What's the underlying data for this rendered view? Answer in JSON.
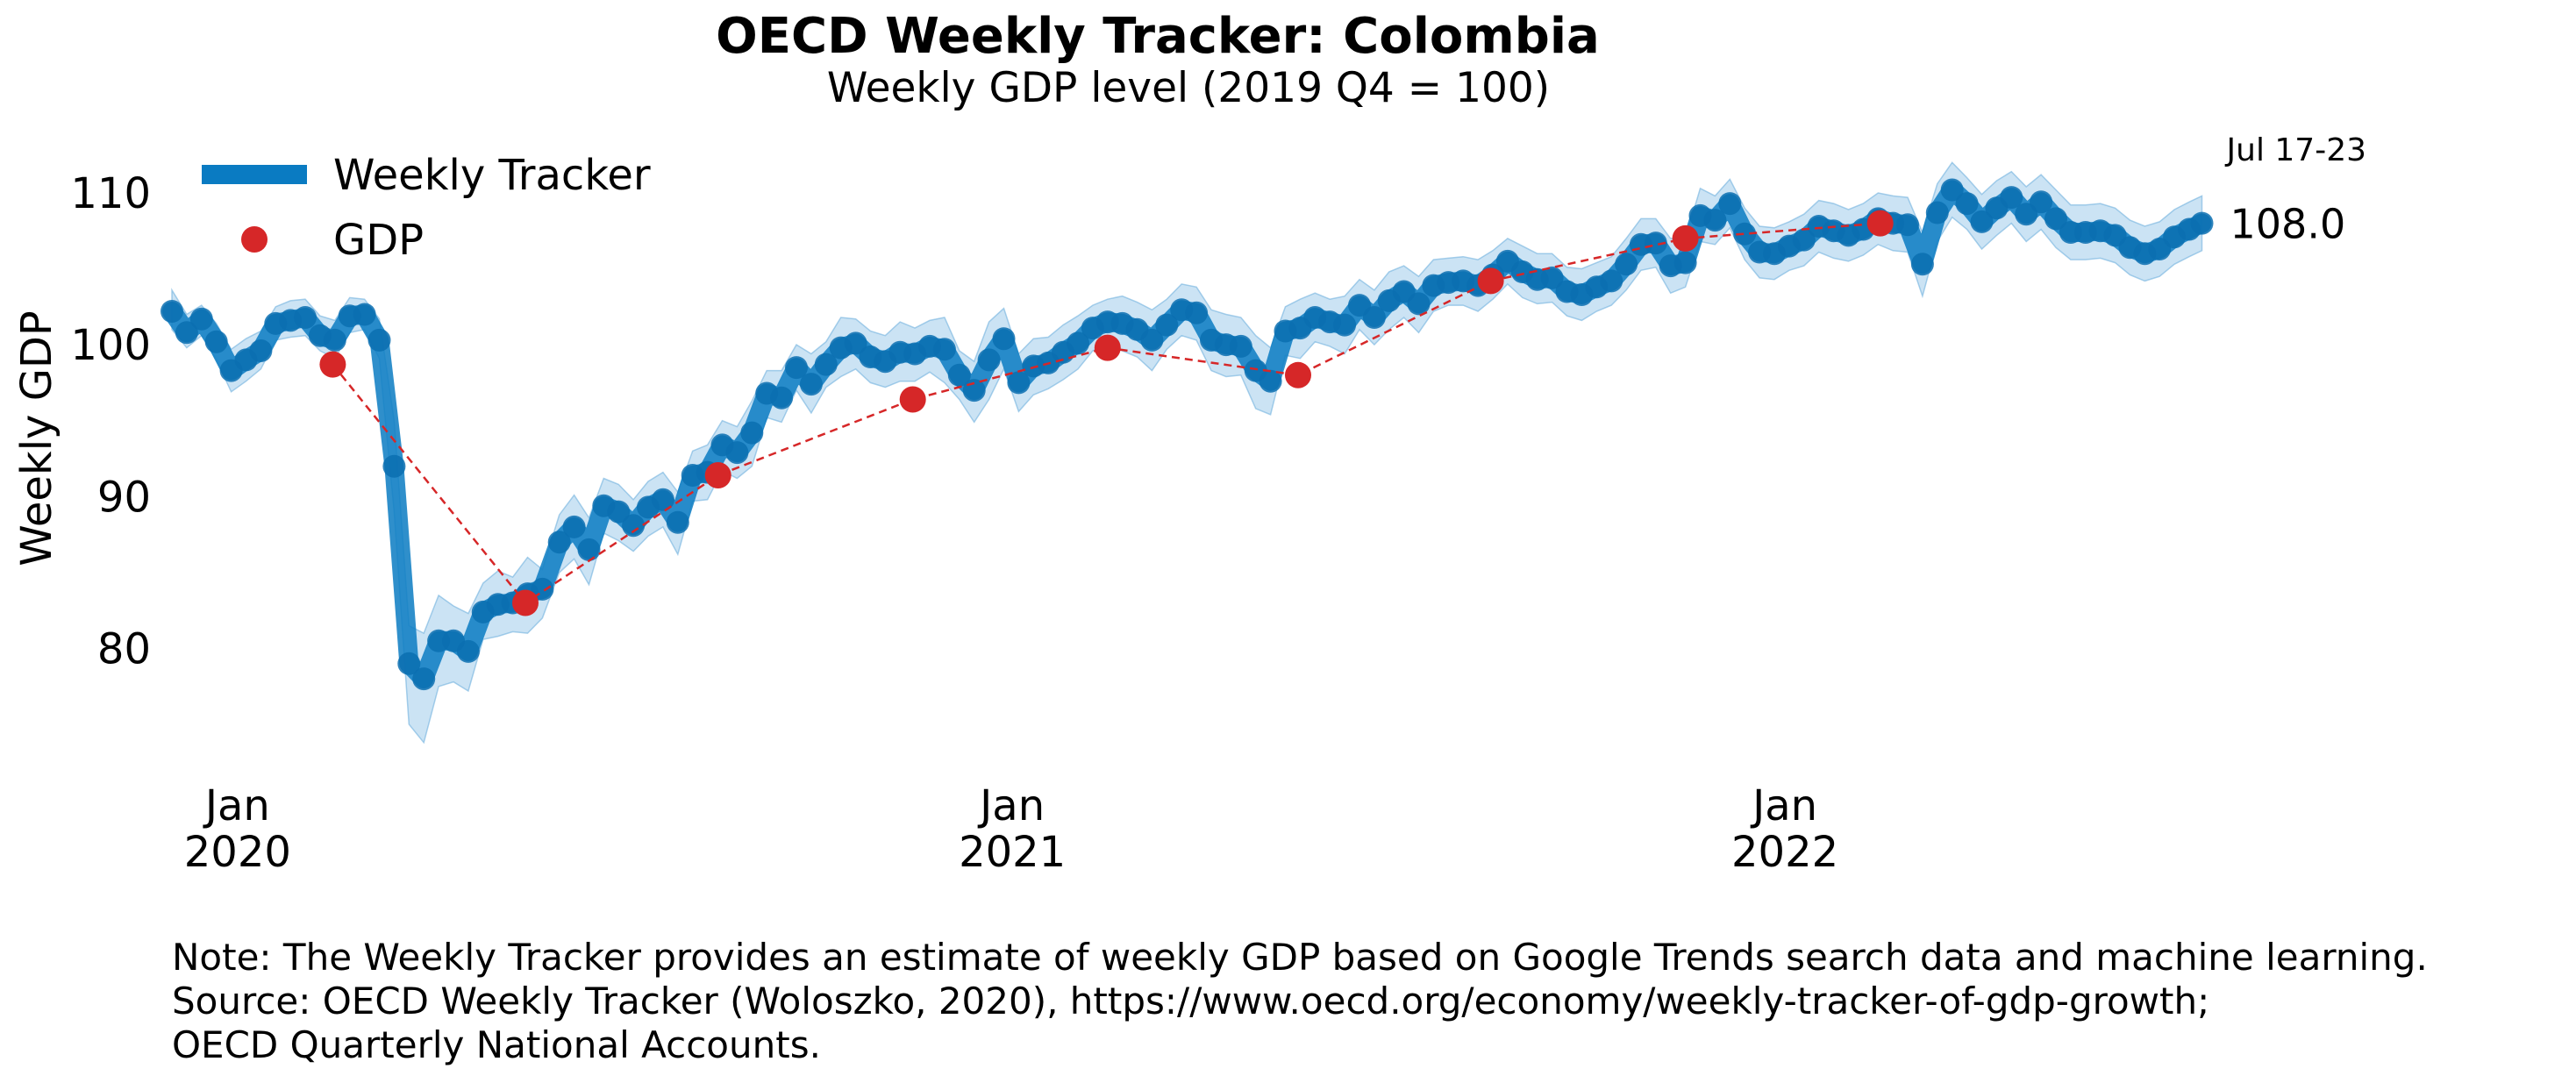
{
  "chart_data": {
    "type": "line",
    "title": "OECD Weekly Tracker: Colombia",
    "subtitle": "Weekly GDP level (2019 Q4 = 100)",
    "ylabel": "Weekly GDP",
    "xlabel": "",
    "ylim": [
      72,
      113
    ],
    "xlim": [
      "2019-12-01",
      "2022-07-23"
    ],
    "grid": false,
    "legend_position": "top-left",
    "y_ticks": [
      80,
      90,
      100,
      110
    ],
    "x_ticks": [
      {
        "date": "2020-01-01",
        "label_line1": "Jan",
        "label_line2": "2020"
      },
      {
        "date": "2021-01-01",
        "label_line1": "Jan",
        "label_line2": "2021"
      },
      {
        "date": "2022-01-01",
        "label_line1": "Jan",
        "label_line2": "2022"
      }
    ],
    "series": [
      {
        "name": "Weekly Tracker",
        "kind": "line_with_band",
        "color": "#0a7bc2",
        "band_color": "#a9d0ec",
        "points": [
          [
            "2019-12-01",
            102.2,
            103.6,
            101.0
          ],
          [
            "2019-12-08",
            100.8,
            102.0,
            99.8
          ],
          [
            "2019-12-15",
            101.7,
            102.6,
            100.6
          ],
          [
            "2019-12-22",
            100.2,
            101.4,
            99.0
          ],
          [
            "2019-12-29",
            98.3,
            99.7,
            96.9
          ],
          [
            "2020-01-05",
            99.0,
            100.4,
            97.6
          ],
          [
            "2020-01-12",
            99.6,
            100.9,
            98.4
          ],
          [
            "2020-01-19",
            101.4,
            102.5,
            100.3
          ],
          [
            "2020-01-26",
            101.6,
            102.9,
            100.5
          ],
          [
            "2020-02-02",
            101.8,
            103.0,
            100.6
          ],
          [
            "2020-02-09",
            100.6,
            101.9,
            99.6
          ],
          [
            "2020-02-16",
            100.3,
            101.6,
            99.1
          ],
          [
            "2020-02-23",
            101.9,
            103.1,
            100.8
          ],
          [
            "2020-03-01",
            102.0,
            103.0,
            101.0
          ],
          [
            "2020-03-08",
            100.3,
            101.7,
            99.1
          ],
          [
            "2020-03-15",
            92.0,
            95.0,
            89.0
          ],
          [
            "2020-03-22",
            79.0,
            81.5,
            75.0
          ],
          [
            "2020-03-29",
            78.0,
            81.0,
            73.8
          ],
          [
            "2020-04-05",
            80.5,
            83.5,
            77.5
          ],
          [
            "2020-04-12",
            80.5,
            82.8,
            77.8
          ],
          [
            "2020-04-19",
            79.8,
            82.3,
            77.2
          ],
          [
            "2020-04-26",
            82.4,
            84.3,
            80.6
          ],
          [
            "2020-05-03",
            82.9,
            85.1,
            80.8
          ],
          [
            "2020-05-10",
            83.0,
            84.7,
            81.1
          ],
          [
            "2020-05-17",
            83.6,
            86.0,
            81.0
          ],
          [
            "2020-05-24",
            83.9,
            85.2,
            82.0
          ],
          [
            "2020-06-01",
            87.0,
            88.8,
            85.0
          ],
          [
            "2020-06-08",
            88.0,
            90.1,
            85.9
          ],
          [
            "2020-06-15",
            86.5,
            88.6,
            84.2
          ],
          [
            "2020-06-22",
            89.4,
            91.2,
            87.6
          ],
          [
            "2020-06-29",
            89.0,
            90.8,
            87.1
          ],
          [
            "2020-07-06",
            88.1,
            89.8,
            86.4
          ],
          [
            "2020-07-13",
            89.3,
            91.0,
            87.4
          ],
          [
            "2020-07-20",
            89.8,
            91.6,
            88.0
          ],
          [
            "2020-07-27",
            88.3,
            90.3,
            86.2
          ],
          [
            "2020-08-03",
            91.4,
            93.0,
            89.7
          ],
          [
            "2020-08-10",
            91.6,
            93.4,
            89.8
          ],
          [
            "2020-08-17",
            93.4,
            95.0,
            91.7
          ],
          [
            "2020-08-24",
            92.9,
            94.6,
            91.2
          ],
          [
            "2020-08-31",
            94.2,
            96.3,
            92.0
          ],
          [
            "2020-09-07",
            96.8,
            98.3,
            95.2
          ],
          [
            "2020-09-14",
            96.5,
            98.3,
            94.9
          ],
          [
            "2020-09-21",
            98.5,
            100.0,
            97.0
          ],
          [
            "2020-09-28",
            97.4,
            99.4,
            95.5
          ],
          [
            "2020-10-05",
            98.7,
            100.2,
            97.2
          ],
          [
            "2020-10-12",
            99.8,
            101.8,
            97.9
          ],
          [
            "2020-10-19",
            100.1,
            101.7,
            98.4
          ],
          [
            "2020-10-26",
            99.2,
            100.9,
            97.5
          ],
          [
            "2020-11-02",
            98.9,
            100.6,
            97.2
          ],
          [
            "2020-11-09",
            99.5,
            101.5,
            97.6
          ],
          [
            "2020-11-16",
            99.4,
            101.1,
            97.6
          ],
          [
            "2020-11-23",
            99.9,
            101.6,
            98.2
          ],
          [
            "2020-11-30",
            99.7,
            101.8,
            97.5
          ],
          [
            "2020-12-07",
            98.0,
            99.6,
            96.4
          ],
          [
            "2020-12-14",
            97.0,
            98.9,
            94.9
          ],
          [
            "2020-12-21",
            99.0,
            101.5,
            96.4
          ],
          [
            "2020-12-28",
            100.4,
            102.4,
            98.4
          ],
          [
            "2021-01-04",
            97.5,
            99.4,
            95.6
          ],
          [
            "2021-01-11",
            98.6,
            100.4,
            96.7
          ],
          [
            "2021-01-18",
            98.8,
            100.5,
            97.1
          ],
          [
            "2021-01-25",
            99.5,
            101.3,
            97.7
          ],
          [
            "2021-02-01",
            100.1,
            101.9,
            98.4
          ],
          [
            "2021-02-08",
            101.1,
            102.6,
            99.6
          ],
          [
            "2021-02-15",
            101.5,
            103.0,
            100.0
          ],
          [
            "2021-02-22",
            101.4,
            103.2,
            99.6
          ],
          [
            "2021-03-01",
            101.0,
            102.8,
            99.2
          ],
          [
            "2021-03-08",
            100.3,
            102.3,
            98.3
          ],
          [
            "2021-03-15",
            101.3,
            103.0,
            99.7
          ],
          [
            "2021-03-22",
            102.3,
            104.0,
            100.6
          ],
          [
            "2021-03-29",
            102.1,
            103.8,
            100.3
          ],
          [
            "2021-04-05",
            100.3,
            102.3,
            98.3
          ],
          [
            "2021-04-12",
            100.0,
            102.0,
            97.9
          ],
          [
            "2021-04-19",
            99.9,
            101.8,
            98.0
          ],
          [
            "2021-04-26",
            98.3,
            100.6,
            95.8
          ],
          [
            "2021-05-03",
            97.6,
            99.8,
            95.4
          ],
          [
            "2021-05-10",
            100.9,
            102.5,
            99.3
          ],
          [
            "2021-05-17",
            101.1,
            103.0,
            99.1
          ],
          [
            "2021-05-24",
            101.8,
            103.4,
            100.2
          ],
          [
            "2021-05-31",
            101.5,
            103.0,
            99.9
          ],
          [
            "2021-06-07",
            101.3,
            103.2,
            99.4
          ],
          [
            "2021-06-14",
            102.6,
            104.3,
            101.0
          ],
          [
            "2021-06-21",
            101.8,
            103.6,
            100.0
          ],
          [
            "2021-06-28",
            102.9,
            104.8,
            101.0
          ],
          [
            "2021-07-05",
            103.5,
            105.2,
            101.8
          ],
          [
            "2021-07-12",
            102.7,
            104.5,
            100.8
          ],
          [
            "2021-07-19",
            103.9,
            105.6,
            102.2
          ],
          [
            "2021-07-26",
            104.1,
            105.7,
            102.6
          ],
          [
            "2021-08-02",
            104.2,
            105.8,
            102.6
          ],
          [
            "2021-08-09",
            103.9,
            105.6,
            102.2
          ],
          [
            "2021-08-16",
            104.6,
            106.2,
            103.0
          ],
          [
            "2021-08-23",
            105.5,
            107.0,
            104.0
          ],
          [
            "2021-08-30",
            104.8,
            106.5,
            103.1
          ],
          [
            "2021-09-06",
            104.3,
            106.0,
            102.7
          ],
          [
            "2021-09-13",
            104.4,
            106.0,
            102.8
          ],
          [
            "2021-09-20",
            103.5,
            105.1,
            101.9
          ],
          [
            "2021-09-27",
            103.3,
            105.0,
            101.6
          ],
          [
            "2021-10-04",
            103.8,
            105.4,
            102.2
          ],
          [
            "2021-10-11",
            104.2,
            105.8,
            102.6
          ],
          [
            "2021-10-18",
            105.3,
            107.0,
            103.6
          ],
          [
            "2021-10-25",
            106.6,
            108.3,
            104.9
          ],
          [
            "2021-11-01",
            106.7,
            108.3,
            105.1
          ],
          [
            "2021-11-08",
            105.2,
            107.0,
            103.4
          ],
          [
            "2021-11-15",
            105.4,
            107.0,
            103.8
          ],
          [
            "2021-11-22",
            108.5,
            110.3,
            106.8
          ],
          [
            "2021-11-29",
            108.2,
            109.8,
            106.6
          ],
          [
            "2021-12-06",
            109.3,
            110.9,
            107.7
          ],
          [
            "2021-12-13",
            107.3,
            109.0,
            105.6
          ],
          [
            "2021-12-20",
            106.1,
            107.8,
            104.4
          ],
          [
            "2021-12-27",
            106.0,
            107.7,
            104.3
          ],
          [
            "2022-01-03",
            106.5,
            108.1,
            104.9
          ],
          [
            "2022-01-10",
            106.9,
            108.6,
            105.2
          ],
          [
            "2022-01-17",
            107.8,
            109.5,
            106.1
          ],
          [
            "2022-01-24",
            107.5,
            109.3,
            105.7
          ],
          [
            "2022-01-31",
            107.2,
            108.9,
            105.5
          ],
          [
            "2022-02-07",
            107.6,
            109.3,
            105.9
          ],
          [
            "2022-02-14",
            108.3,
            110.0,
            106.6
          ],
          [
            "2022-02-21",
            108.0,
            109.8,
            106.2
          ],
          [
            "2022-02-28",
            107.9,
            109.7,
            106.1
          ],
          [
            "2022-03-07",
            105.3,
            107.4,
            103.2
          ],
          [
            "2022-03-14",
            108.7,
            110.6,
            106.8
          ],
          [
            "2022-03-21",
            110.2,
            112.0,
            108.4
          ],
          [
            "2022-03-28",
            109.3,
            111.0,
            107.6
          ],
          [
            "2022-04-04",
            108.1,
            109.9,
            106.3
          ],
          [
            "2022-04-11",
            109.0,
            110.8,
            107.2
          ],
          [
            "2022-04-18",
            109.7,
            111.4,
            108.0
          ],
          [
            "2022-04-25",
            108.6,
            110.4,
            106.8
          ],
          [
            "2022-05-02",
            109.4,
            111.2,
            107.6
          ],
          [
            "2022-05-09",
            108.3,
            110.2,
            106.4
          ],
          [
            "2022-05-16",
            107.4,
            109.2,
            105.6
          ],
          [
            "2022-05-23",
            107.4,
            109.2,
            105.6
          ],
          [
            "2022-05-30",
            107.5,
            109.3,
            105.7
          ],
          [
            "2022-06-06",
            107.2,
            109.0,
            105.4
          ],
          [
            "2022-06-13",
            106.4,
            108.2,
            104.6
          ],
          [
            "2022-06-20",
            106.0,
            107.8,
            104.2
          ],
          [
            "2022-06-27",
            106.3,
            108.1,
            104.5
          ],
          [
            "2022-07-04",
            107.1,
            108.9,
            105.3
          ],
          [
            "2022-07-11",
            107.6,
            109.4,
            105.8
          ],
          [
            "2022-07-17",
            108.0,
            109.8,
            106.2
          ]
        ]
      },
      {
        "name": "GDP",
        "kind": "markers_dashed",
        "color": "#d62728",
        "points": [
          [
            "2020-02-15",
            98.7
          ],
          [
            "2020-05-16",
            83.0
          ],
          [
            "2020-08-15",
            91.4
          ],
          [
            "2020-11-15",
            96.4
          ],
          [
            "2021-02-15",
            99.8
          ],
          [
            "2021-05-16",
            98.0
          ],
          [
            "2021-08-15",
            104.2
          ],
          [
            "2021-11-15",
            107.0
          ],
          [
            "2022-02-15",
            108.0
          ]
        ]
      }
    ],
    "annotations": [
      {
        "text": "Jul 17-23",
        "anchor": "last-point",
        "role": "date-label"
      },
      {
        "text": "108.0",
        "anchor": "last-point",
        "role": "value-label"
      }
    ],
    "note_lines": [
      "Note: The Weekly Tracker provides an estimate of weekly GDP based on Google Trends search data and machine learning.",
      "Source: OECD Weekly Tracker (Woloszko, 2020), https://www.oecd.org/economy/weekly-tracker-of-gdp-growth;",
      "OECD Quarterly National Accounts."
    ]
  }
}
